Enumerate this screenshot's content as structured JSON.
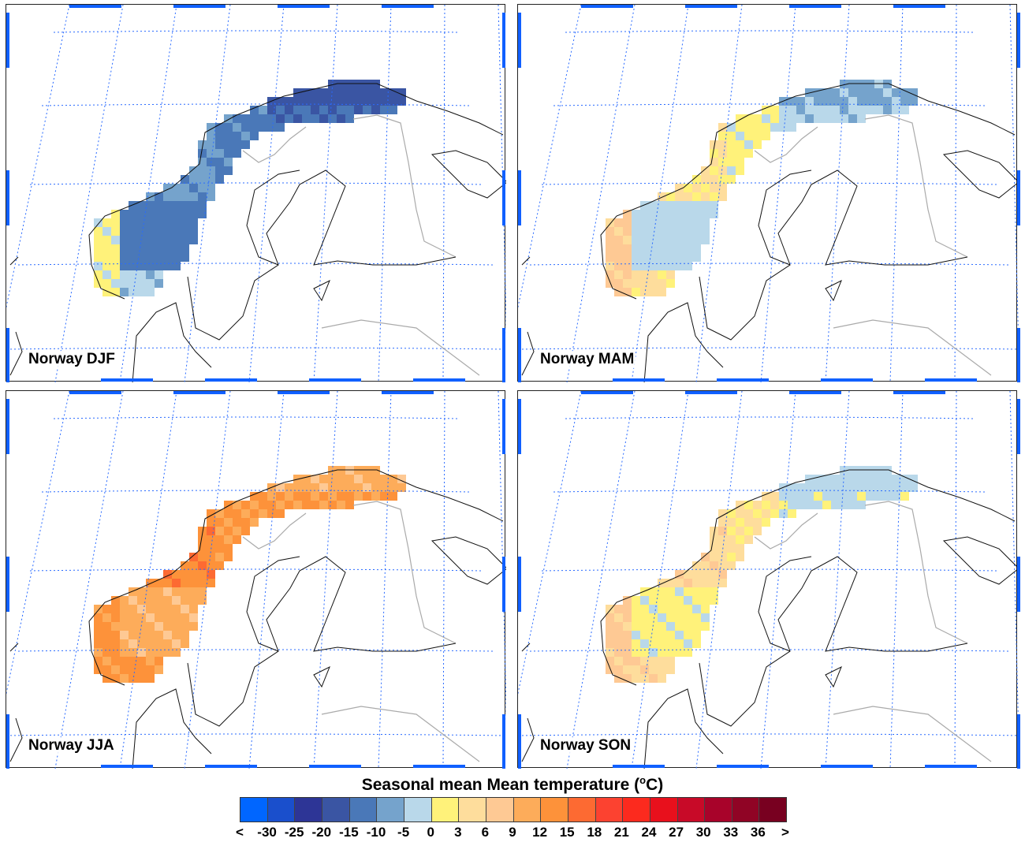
{
  "chart_data": {
    "type": "heatmap",
    "title": "Seasonal mean Mean temperature",
    "unit": "oC",
    "colorbar": {
      "labels": [
        "<",
        "-30",
        "-25",
        "-20",
        "-15",
        "-10",
        "-5",
        "0",
        "3",
        "6",
        "9",
        "12",
        "15",
        "18",
        "21",
        "24",
        "27",
        "30",
        "33",
        "36",
        ">"
      ],
      "bounds": [
        -30,
        -25,
        -20,
        -15,
        -10,
        -5,
        0,
        3,
        6,
        9,
        12,
        15,
        18,
        21,
        24,
        27,
        30,
        33,
        36
      ],
      "colors": [
        "#0066ff",
        "#1a4fcc",
        "#2d3596",
        "#3a55a3",
        "#4a78b8",
        "#75a3cc",
        "#b9d8ea",
        "#fff27a",
        "#fedd9c",
        "#fec994",
        "#fdac5a",
        "#fd923a",
        "#fd6a32",
        "#fc4230",
        "#fc2a1e",
        "#e8101c",
        "#c80a28",
        "#a8032a",
        "#900425",
        "#780020"
      ]
    },
    "panels": [
      {
        "title": "Norway DJF",
        "region_values": {
          "west_coast": 1,
          "south_coast": -4,
          "south_inland": -12,
          "mid": -11,
          "north": -17
        }
      },
      {
        "title": "Norway MAM",
        "region_values": {
          "west_coast": 7,
          "south_coast": 4,
          "south_inland": -3,
          "mid": 1,
          "north": -6
        }
      },
      {
        "title": "Norway JJA",
        "region_values": {
          "west_coast": 13,
          "south_coast": 13,
          "south_inland": 10,
          "mid": 12,
          "north": 10
        }
      },
      {
        "title": "Norway SON",
        "region_values": {
          "west_coast": 7,
          "south_coast": 5,
          "south_inland": 1,
          "mid": 3,
          "north": -3
        }
      }
    ]
  }
}
